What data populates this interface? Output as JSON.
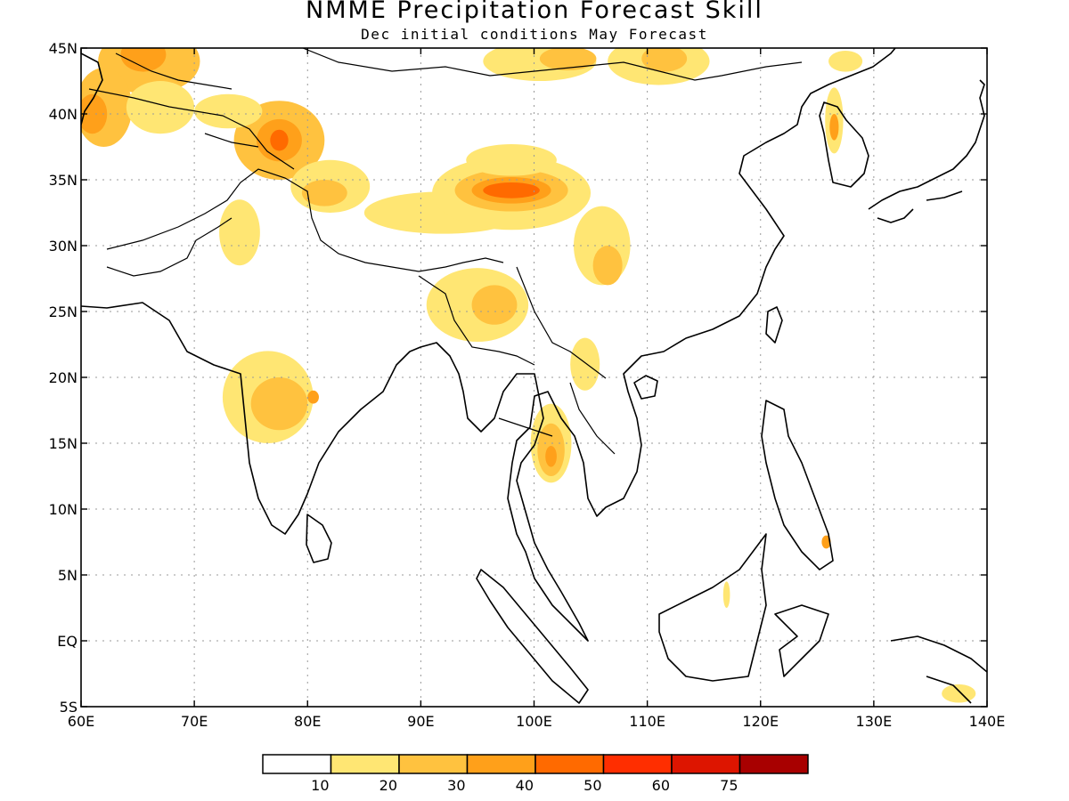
{
  "title": "NMME Precipitation Forecast Skill",
  "subtitle": "Dec initial conditions  May Forecast",
  "map": {
    "lon_range": [
      60,
      140
    ],
    "lat_range": [
      -5,
      45
    ],
    "lon_ticks": [
      {
        "value": 60,
        "label": "60E"
      },
      {
        "value": 70,
        "label": "70E"
      },
      {
        "value": 80,
        "label": "80E"
      },
      {
        "value": 90,
        "label": "90E"
      },
      {
        "value": 100,
        "label": "100E"
      },
      {
        "value": 110,
        "label": "110E"
      },
      {
        "value": 120,
        "label": "120E"
      },
      {
        "value": 130,
        "label": "130E"
      },
      {
        "value": 140,
        "label": "140E"
      }
    ],
    "lat_ticks": [
      {
        "value": 45,
        "label": "45N"
      },
      {
        "value": 40,
        "label": "40N"
      },
      {
        "value": 35,
        "label": "35N"
      },
      {
        "value": 30,
        "label": "30N"
      },
      {
        "value": 25,
        "label": "25N"
      },
      {
        "value": 20,
        "label": "20N"
      },
      {
        "value": 15,
        "label": "15N"
      },
      {
        "value": 10,
        "label": "10N"
      },
      {
        "value": 5,
        "label": "5N"
      },
      {
        "value": 0,
        "label": "EQ"
      },
      {
        "value": -5,
        "label": "5S"
      }
    ],
    "grid": true
  },
  "legend": {
    "colors": [
      "#ffffff",
      "#ffe673",
      "#ffc23f",
      "#ffa01a",
      "#ff6a00",
      "#ff2e00",
      "#dd1500",
      "#a80000"
    ],
    "labels": [
      "10",
      "20",
      "30",
      "40",
      "50",
      "60",
      "75"
    ]
  },
  "skill_regions": [
    {
      "lon": 66,
      "lat": 44,
      "rx": 4.5,
      "ry": 2.5,
      "level": 2
    },
    {
      "lon": 65.5,
      "lat": 44.5,
      "rx": 2,
      "ry": 1.3,
      "level": 3
    },
    {
      "lon": 62,
      "lat": 40.5,
      "rx": 2.5,
      "ry": 3,
      "level": 2
    },
    {
      "lon": 61,
      "lat": 40,
      "rx": 1.3,
      "ry": 1.5,
      "level": 3
    },
    {
      "lon": 67,
      "lat": 40.5,
      "rx": 3,
      "ry": 2,
      "level": 1
    },
    {
      "lon": 77.5,
      "lat": 38,
      "rx": 4,
      "ry": 3,
      "level": 2
    },
    {
      "lon": 77.5,
      "lat": 38,
      "rx": 2,
      "ry": 1.6,
      "level": 3
    },
    {
      "lon": 77.5,
      "lat": 38,
      "rx": 0.8,
      "ry": 0.8,
      "level": 4
    },
    {
      "lon": 73,
      "lat": 40.2,
      "rx": 3,
      "ry": 1.3,
      "level": 1
    },
    {
      "lon": 82,
      "lat": 34.5,
      "rx": 3.5,
      "ry": 2,
      "level": 1
    },
    {
      "lon": 81.5,
      "lat": 34,
      "rx": 2,
      "ry": 1,
      "level": 2
    },
    {
      "lon": 92,
      "lat": 32.5,
      "rx": 7,
      "ry": 1.6,
      "level": 1
    },
    {
      "lon": 98,
      "lat": 34,
      "rx": 7,
      "ry": 2.8,
      "level": 1
    },
    {
      "lon": 98,
      "lat": 34.2,
      "rx": 5,
      "ry": 1.6,
      "level": 2
    },
    {
      "lon": 98,
      "lat": 34.2,
      "rx": 3.5,
      "ry": 1,
      "level": 3
    },
    {
      "lon": 98,
      "lat": 34.2,
      "rx": 2.5,
      "ry": 0.6,
      "level": 4
    },
    {
      "lon": 98,
      "lat": 36.5,
      "rx": 4,
      "ry": 1.2,
      "level": 1
    },
    {
      "lon": 106,
      "lat": 30,
      "rx": 2.5,
      "ry": 3,
      "level": 1
    },
    {
      "lon": 106.5,
      "lat": 28.5,
      "rx": 1.3,
      "ry": 1.5,
      "level": 2
    },
    {
      "lon": 95,
      "lat": 25.5,
      "rx": 4.5,
      "ry": 2.8,
      "level": 1
    },
    {
      "lon": 96.5,
      "lat": 25.5,
      "rx": 2,
      "ry": 1.5,
      "level": 2
    },
    {
      "lon": 100.5,
      "lat": 44,
      "rx": 5,
      "ry": 1.5,
      "level": 1
    },
    {
      "lon": 103,
      "lat": 44.2,
      "rx": 2.5,
      "ry": 0.9,
      "level": 2
    },
    {
      "lon": 111,
      "lat": 44,
      "rx": 4.5,
      "ry": 1.8,
      "level": 1
    },
    {
      "lon": 111.5,
      "lat": 44.2,
      "rx": 2,
      "ry": 1,
      "level": 2
    },
    {
      "lon": 74,
      "lat": 31,
      "rx": 1.8,
      "ry": 2.5,
      "level": 1
    },
    {
      "lon": 76.5,
      "lat": 18.5,
      "rx": 4,
      "ry": 3.5,
      "level": 1
    },
    {
      "lon": 77.5,
      "lat": 18,
      "rx": 2.5,
      "ry": 2,
      "level": 2
    },
    {
      "lon": 80.5,
      "lat": 18.5,
      "rx": 0.5,
      "ry": 0.5,
      "level": 3
    },
    {
      "lon": 101.5,
      "lat": 15,
      "rx": 1.8,
      "ry": 3,
      "level": 1
    },
    {
      "lon": 101.5,
      "lat": 14.5,
      "rx": 1.2,
      "ry": 2,
      "level": 2
    },
    {
      "lon": 101.5,
      "lat": 14,
      "rx": 0.5,
      "ry": 0.8,
      "level": 3
    },
    {
      "lon": 104.5,
      "lat": 21,
      "rx": 1.3,
      "ry": 2,
      "level": 1
    },
    {
      "lon": 126.5,
      "lat": 39.5,
      "rx": 0.8,
      "ry": 2.5,
      "level": 1
    },
    {
      "lon": 126.5,
      "lat": 39,
      "rx": 0.4,
      "ry": 1,
      "level": 3
    },
    {
      "lon": 127.5,
      "lat": 44,
      "rx": 1.5,
      "ry": 0.8,
      "level": 1
    },
    {
      "lon": 125.8,
      "lat": 7.5,
      "rx": 0.4,
      "ry": 0.5,
      "level": 3
    },
    {
      "lon": 117,
      "lat": 3.5,
      "rx": 0.3,
      "ry": 1,
      "level": 1
    },
    {
      "lon": 137.5,
      "lat": -4,
      "rx": 1.5,
      "ry": 0.7,
      "level": 1
    }
  ]
}
